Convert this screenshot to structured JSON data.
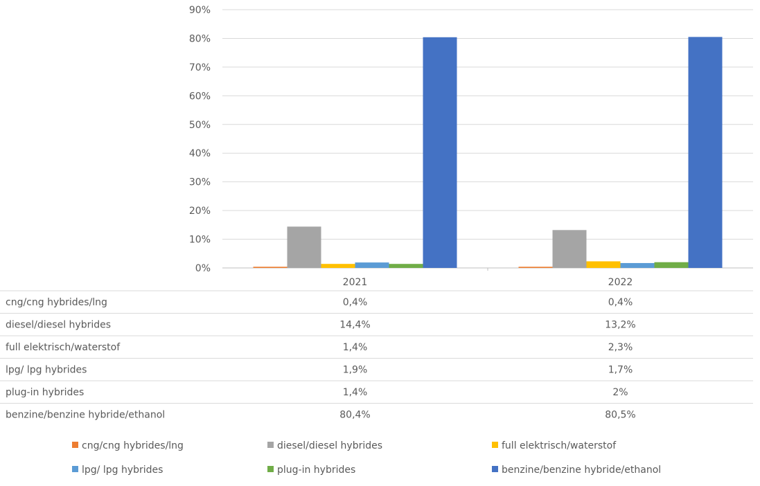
{
  "chart_data": {
    "type": "bar",
    "title": "",
    "xlabel": "",
    "ylabel": "",
    "categories": [
      "2021",
      "2022"
    ],
    "ylim": [
      0,
      90
    ],
    "y_ticks": [
      "0%",
      "10%",
      "20%",
      "30%",
      "40%",
      "50%",
      "60%",
      "70%",
      "80%",
      "90%"
    ],
    "y_tick_values": [
      0,
      10,
      20,
      30,
      40,
      50,
      60,
      70,
      80,
      90
    ],
    "grid": true,
    "legend_position": "bottom",
    "has_data_table": true,
    "series": [
      {
        "name": "cng/cng hybrides/lng",
        "color": "#ED7D31",
        "values": [
          0.4,
          0.4
        ],
        "labels": [
          "0,4%",
          "0,4%"
        ]
      },
      {
        "name": "diesel/diesel hybrides",
        "color": "#A5A5A5",
        "values": [
          14.4,
          13.2
        ],
        "labels": [
          "14,4%",
          "13,2%"
        ]
      },
      {
        "name": "full elektrisch/waterstof",
        "color": "#FFC000",
        "values": [
          1.4,
          2.3
        ],
        "labels": [
          "1,4%",
          "2,3%"
        ]
      },
      {
        "name": "lpg/ lpg hybrides",
        "color": "#5B9BD5",
        "values": [
          1.9,
          1.7
        ],
        "labels": [
          "1,9%",
          "1,7%"
        ]
      },
      {
        "name": "plug-in hybrides",
        "color": "#70AD47",
        "values": [
          1.4,
          2.0
        ],
        "labels": [
          "1,4%",
          "2%"
        ]
      },
      {
        "name": "benzine/benzine hybride/ethanol",
        "color": "#4472C4",
        "values": [
          80.4,
          80.5
        ],
        "labels": [
          "80,4%",
          "80,5%"
        ]
      }
    ]
  }
}
